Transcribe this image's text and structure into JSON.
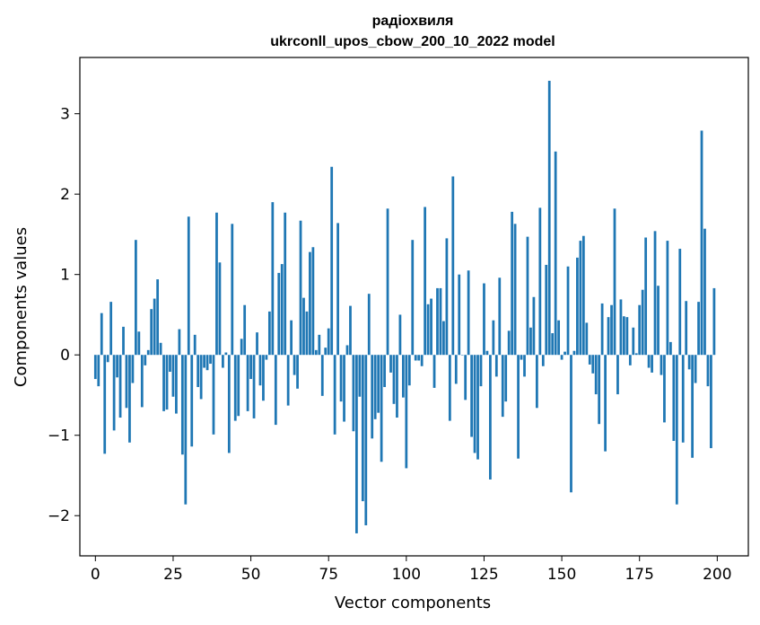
{
  "chart_data": {
    "type": "bar",
    "title": "радіохвиля",
    "subtitle": "ukrconll_upos_cbow_200_10_2022 model",
    "xlabel": "Vector components",
    "ylabel": "Components values",
    "xlim": [
      -5,
      210
    ],
    "ylim": [
      -2.5,
      3.7
    ],
    "xticks": [
      0,
      25,
      50,
      75,
      100,
      125,
      150,
      175,
      200
    ],
    "xtick_labels": [
      "0",
      "25",
      "50",
      "75",
      "100",
      "125",
      "150",
      "175",
      "200"
    ],
    "yticks": [
      -2,
      -1,
      0,
      1,
      2,
      3
    ],
    "ytick_labels": [
      "−2",
      "−1",
      "0",
      "1",
      "2",
      "3"
    ],
    "bar_color": "#1f77b4",
    "grid": false,
    "x": [
      0,
      1,
      2,
      3,
      4,
      5,
      6,
      7,
      8,
      9,
      10,
      11,
      12,
      13,
      14,
      15,
      16,
      17,
      18,
      19,
      20,
      21,
      22,
      23,
      24,
      25,
      26,
      27,
      28,
      29,
      30,
      31,
      32,
      33,
      34,
      35,
      36,
      37,
      38,
      39,
      40,
      41,
      42,
      43,
      44,
      45,
      46,
      47,
      48,
      49,
      50,
      51,
      52,
      53,
      54,
      55,
      56,
      57,
      58,
      59,
      60,
      61,
      62,
      63,
      64,
      65,
      66,
      67,
      68,
      69,
      70,
      71,
      72,
      73,
      74,
      75,
      76,
      77,
      78,
      79,
      80,
      81,
      82,
      83,
      84,
      85,
      86,
      87,
      88,
      89,
      90,
      91,
      92,
      93,
      94,
      95,
      96,
      97,
      98,
      99,
      100,
      101,
      102,
      103,
      104,
      105,
      106,
      107,
      108,
      109,
      110,
      111,
      112,
      113,
      114,
      115,
      116,
      117,
      118,
      119,
      120,
      121,
      122,
      123,
      124,
      125,
      126,
      127,
      128,
      129,
      130,
      131,
      132,
      133,
      134,
      135,
      136,
      137,
      138,
      139,
      140,
      141,
      142,
      143,
      144,
      145,
      146,
      147,
      148,
      149,
      150,
      151,
      152,
      153,
      154,
      155,
      156,
      157,
      158,
      159,
      160,
      161,
      162,
      163,
      164,
      165,
      166,
      167,
      168,
      169,
      170,
      171,
      172,
      173,
      174,
      175,
      176,
      177,
      178,
      179,
      180,
      181,
      182,
      183,
      184,
      185,
      186,
      187,
      188,
      189,
      190,
      191,
      192,
      193,
      194,
      195,
      196,
      197,
      198,
      199
    ],
    "values": [
      -0.3,
      -0.39,
      0.52,
      -1.23,
      -0.09,
      0.66,
      -0.94,
      -0.28,
      -0.78,
      0.35,
      -0.66,
      -1.09,
      -0.35,
      1.43,
      0.29,
      -0.65,
      -0.13,
      0.06,
      0.57,
      0.7,
      0.94,
      0.15,
      -0.7,
      -0.68,
      -0.21,
      -0.52,
      -0.73,
      0.32,
      -1.24,
      -1.86,
      1.72,
      -1.14,
      0.25,
      -0.4,
      -0.55,
      -0.16,
      -0.19,
      -0.11,
      -0.99,
      1.77,
      1.15,
      -0.16,
      0.03,
      -1.22,
      1.63,
      -0.82,
      -0.76,
      0.2,
      0.62,
      -0.7,
      -0.3,
      -0.79,
      0.28,
      -0.38,
      -0.57,
      -0.06,
      0.54,
      1.9,
      -0.87,
      1.02,
      1.13,
      1.77,
      -0.63,
      0.43,
      -0.25,
      -0.42,
      1.67,
      0.71,
      0.54,
      1.28,
      1.34,
      0.06,
      0.25,
      -0.51,
      0.09,
      0.33,
      2.34,
      -0.99,
      1.64,
      -0.58,
      -0.83,
      0.12,
      0.61,
      -0.95,
      -2.22,
      -0.52,
      -1.82,
      -2.12,
      0.76,
      -1.04,
      -0.8,
      -0.72,
      -1.33,
      -0.4,
      1.82,
      -0.22,
      -0.61,
      -0.78,
      0.5,
      -0.53,
      -1.41,
      -0.38,
      1.43,
      -0.07,
      -0.07,
      -0.14,
      1.84,
      0.63,
      0.7,
      -0.41,
      0.83,
      0.83,
      0.42,
      1.45,
      -0.82,
      2.22,
      -0.36,
      1.0,
      0.0,
      -0.56,
      1.05,
      -1.02,
      -1.22,
      -1.3,
      -0.39,
      0.89,
      0.05,
      -1.55,
      0.43,
      -0.27,
      0.96,
      -0.77,
      -0.58,
      0.3,
      1.78,
      1.63,
      -1.29,
      -0.06,
      -0.27,
      1.47,
      0.34,
      0.72,
      -0.66,
      1.83,
      -0.14,
      1.12,
      3.41,
      0.27,
      2.53,
      0.43,
      -0.06,
      0.04,
      1.1,
      -1.71,
      0.05,
      1.21,
      1.42,
      1.48,
      0.4,
      -0.12,
      -0.23,
      -0.49,
      -0.86,
      0.64,
      -1.2,
      0.47,
      0.62,
      1.82,
      -0.49,
      0.69,
      0.48,
      0.47,
      -0.13,
      0.34,
      0.02,
      0.62,
      0.81,
      1.46,
      -0.16,
      -0.22,
      1.54,
      0.86,
      -0.25,
      -0.84,
      1.42,
      0.16,
      -1.07,
      -1.86,
      1.32,
      -1.09,
      0.67,
      -0.18,
      -1.28,
      -0.35,
      0.66,
      2.79,
      1.57,
      -0.39,
      -1.16,
      0.83
    ]
  }
}
